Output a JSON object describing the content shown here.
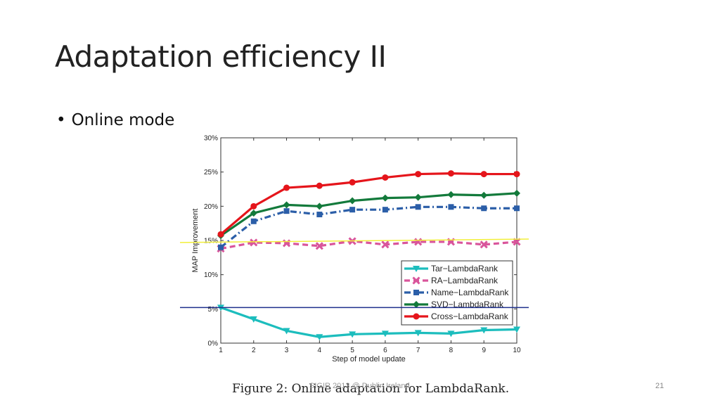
{
  "slide": {
    "title": "Adaptation efficiency II",
    "bullet": "Online mode",
    "caption": "Figure 2:  Online adaptation for LambdaRank.",
    "footer": "SIGIR 2013 @ Dublin Ireland",
    "slide_number": "21"
  },
  "chart_data": {
    "type": "line",
    "title": "",
    "xlabel": "Step of model update",
    "ylabel": "MAP Improvement",
    "x": [
      1,
      2,
      3,
      4,
      5,
      6,
      7,
      8,
      9,
      10
    ],
    "xlim": [
      1,
      10
    ],
    "ylim": [
      0,
      30
    ],
    "yticks": [
      0,
      5,
      10,
      15,
      20,
      25,
      30
    ],
    "ytick_labels": [
      "0%",
      "5%",
      "10%",
      "15%",
      "20%",
      "25%",
      "30%"
    ],
    "grid": false,
    "legend_position": "bottom-right",
    "series": [
      {
        "name": "Tar−LambdaRank",
        "color": "#1cbdbd",
        "marker": "triangle-down",
        "dash": "solid",
        "values": [
          5.2,
          3.5,
          1.8,
          0.9,
          1.3,
          1.4,
          1.5,
          1.4,
          1.9,
          2.0
        ]
      },
      {
        "name": "RA−LambdaRank",
        "color": "#d9559b",
        "marker": "x",
        "dash": "dashed",
        "values": [
          13.8,
          14.7,
          14.6,
          14.2,
          14.9,
          14.4,
          14.8,
          14.8,
          14.4,
          14.8
        ]
      },
      {
        "name": "Name−LambdaRank",
        "color": "#2b5ea8",
        "marker": "square",
        "dash": "dashdot",
        "values": [
          14.0,
          17.8,
          19.3,
          18.8,
          19.5,
          19.5,
          19.9,
          19.9,
          19.7,
          19.7
        ]
      },
      {
        "name": "SVD−LambdaRank",
        "color": "#137a3b",
        "marker": "diamond",
        "dash": "solid",
        "values": [
          15.7,
          19.0,
          20.2,
          20.0,
          20.8,
          21.2,
          21.3,
          21.7,
          21.6,
          21.9
        ]
      },
      {
        "name": "Cross−LambdaRank",
        "color": "#e5151b",
        "marker": "circle",
        "dash": "solid",
        "values": [
          15.9,
          20.0,
          22.7,
          23.0,
          23.5,
          24.2,
          24.7,
          24.8,
          24.7,
          24.7
        ]
      }
    ],
    "annotations": [
      {
        "kind": "reference-line",
        "color": "#f2ef3a",
        "y": [
          14.7,
          15.2
        ]
      },
      {
        "kind": "reference-line",
        "color": "#1e2f8c",
        "y": [
          5.2,
          5.2
        ]
      }
    ]
  }
}
